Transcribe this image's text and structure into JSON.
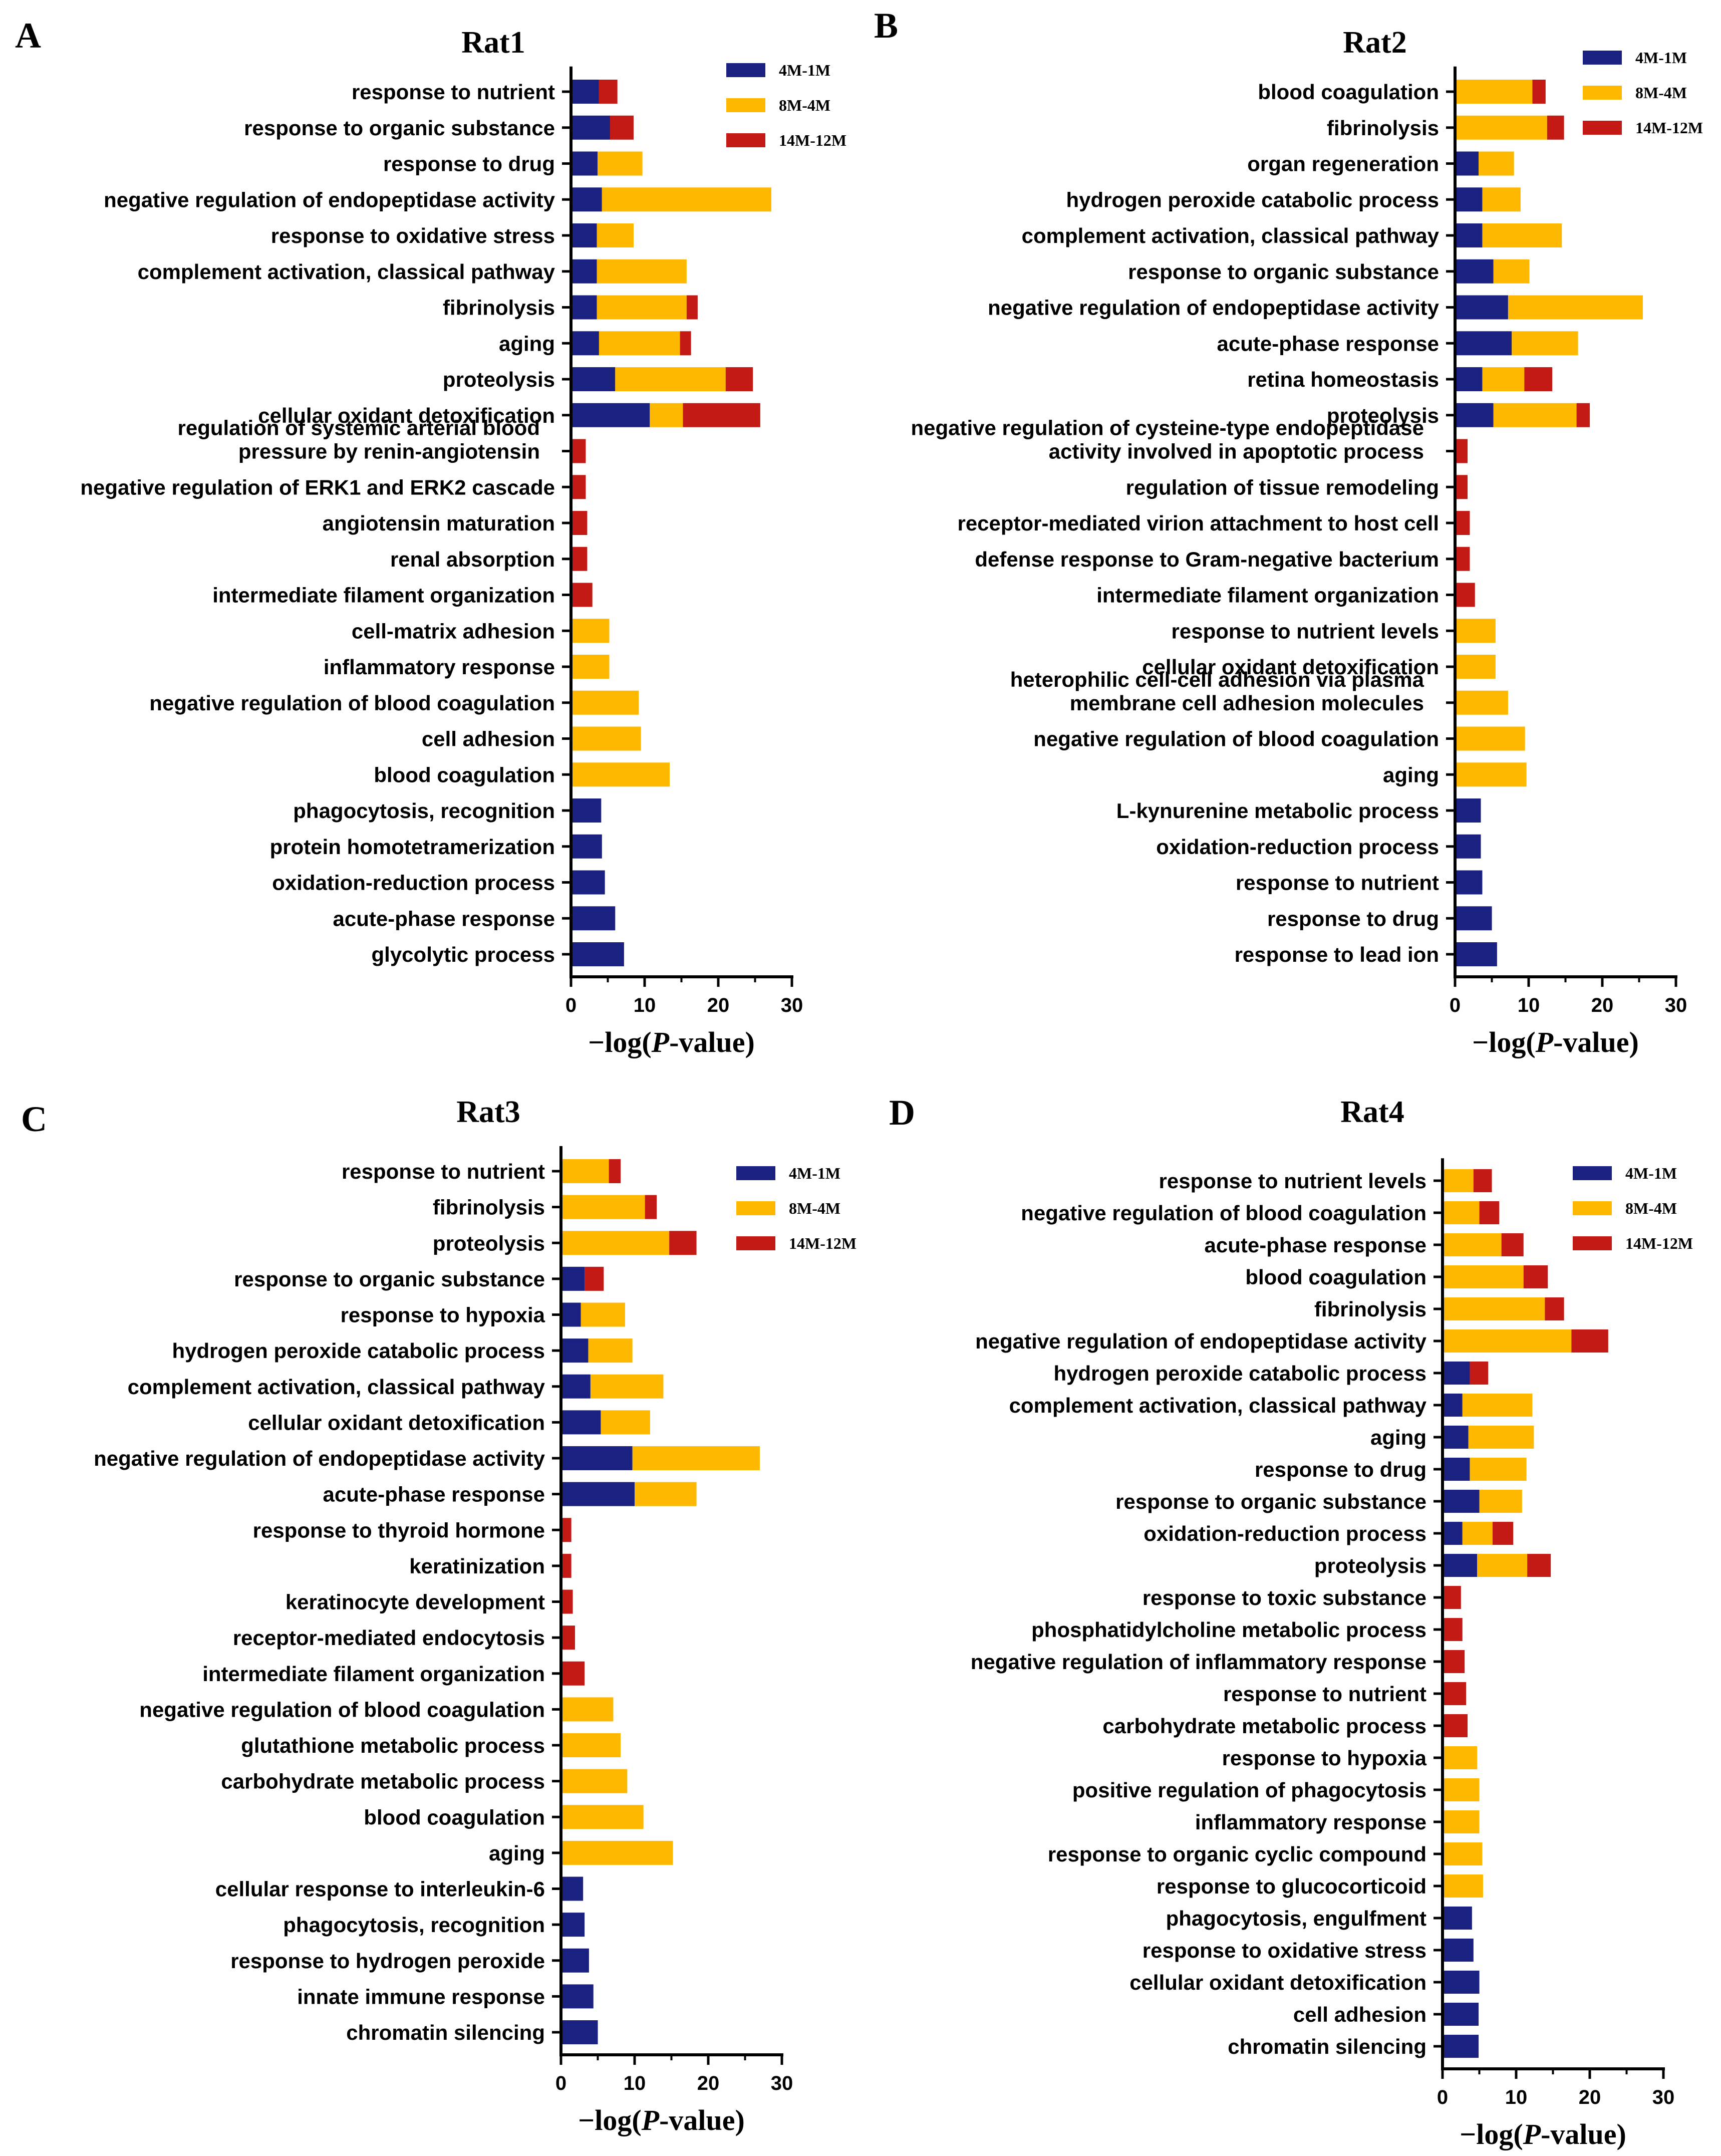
{
  "legend_labels": [
    "4M-1M",
    "8M-4M",
    "14M-12M"
  ],
  "colors": {
    "4M-1M": "#1a2180",
    "8M-4M": "#ffb800",
    "14M-12M": "#c41a16"
  },
  "xlabel_prefix": "−log(",
  "xlabel_italic": "P",
  "xlabel_suffix": "-value)",
  "chart_data": [
    {
      "type": "bar",
      "orientation": "horizontal",
      "stacked": true,
      "panel": "A",
      "title": "Rat1",
      "xlabel": "−log(P-value)",
      "xlim": [
        0,
        30
      ],
      "xticks": [
        0,
        10,
        20,
        30
      ],
      "legend_position": "top-right",
      "categories": [
        "response to nutrient",
        "response to organic substance",
        "response to drug",
        "negative regulation of endopeptidase activity",
        "response to oxidative stress",
        "complement activation, classical pathway",
        "fibrinolysis",
        "aging",
        "proteolysis",
        "cellular oxidant detoxification",
        "regulation of systemic arterial blood|pressure by renin-angiotensin",
        "negative regulation of ERK1 and ERK2 cascade",
        "angiotensin maturation",
        "renal absorption",
        "intermediate filament organization",
        "cell-matrix adhesion",
        "inflammatory response",
        "negative regulation of blood coagulation",
        "cell adhesion",
        "blood coagulation",
        "phagocytosis, recognition",
        "protein homotetramerization",
        "oxidation-reduction process",
        "acute-phase response",
        "glycolytic process"
      ],
      "series": [
        {
          "name": "4M-1M",
          "values": [
            3.6,
            5.1,
            3.4,
            4.0,
            3.3,
            3.3,
            3.3,
            3.6,
            5.8,
            10.5,
            0,
            0,
            0,
            0,
            0,
            0,
            0,
            0,
            0,
            0,
            3.9,
            4.0,
            4.4,
            5.8,
            7.0
          ]
        },
        {
          "name": "8M-4M",
          "values": [
            0,
            0,
            6.1,
            23.0,
            5.0,
            12.2,
            12.2,
            11.0,
            15.0,
            4.5,
            0,
            0,
            0,
            0,
            0,
            5.0,
            5.0,
            9.0,
            9.3,
            13.2,
            0,
            0,
            0,
            0,
            0
          ]
        },
        {
          "name": "14M-12M",
          "values": [
            2.5,
            3.2,
            0,
            0,
            0,
            0,
            1.5,
            1.5,
            3.7,
            10.5,
            1.8,
            1.8,
            2.0,
            2.0,
            2.7,
            0,
            0,
            0,
            0,
            0,
            0,
            0,
            0,
            0,
            0
          ]
        }
      ]
    },
    {
      "type": "bar",
      "orientation": "horizontal",
      "stacked": true,
      "panel": "B",
      "title": "Rat2",
      "xlabel": "−log(P-value)",
      "xlim": [
        0,
        30
      ],
      "xticks": [
        0,
        10,
        20,
        30
      ],
      "legend_position": "top-right",
      "categories": [
        "blood coagulation",
        "fibrinolysis",
        "organ regeneration",
        "hydrogen peroxide catabolic process",
        "complement activation, classical pathway",
        "response to organic substance",
        "negative regulation of endopeptidase activity",
        "acute-phase response",
        "retina homeostasis",
        "proteolysis",
        "negative regulation of cysteine-type endopeptidase|activity involved in apoptotic process",
        "regulation of tissue remodeling",
        "receptor-mediated virion attachment to host cell",
        "defense response to Gram-negative bacterium",
        "intermediate filament organization",
        "response to nutrient levels",
        "cellular oxidant detoxification",
        "heterophilic cell-cell adhesion via plasma|membrane cell adhesion molecules",
        "negative regulation of blood coagulation",
        "aging",
        "L-kynurenine metabolic process",
        "oxidation-reduction process",
        "response to nutrient",
        "response to drug",
        "response to lead ion"
      ],
      "series": [
        {
          "name": "4M-1M",
          "values": [
            0,
            0,
            3.0,
            3.5,
            3.5,
            5.0,
            7.0,
            7.5,
            3.5,
            5.0,
            0,
            0,
            0,
            0,
            0,
            0,
            0,
            0,
            0,
            0,
            3.3,
            3.3,
            3.5,
            4.8,
            5.5
          ]
        },
        {
          "name": "8M-4M",
          "values": [
            10.3,
            12.3,
            4.8,
            5.2,
            10.8,
            4.9,
            18.3,
            9.0,
            5.7,
            11.3,
            0,
            0,
            0,
            0,
            0,
            5.3,
            5.3,
            7.0,
            9.3,
            9.5,
            0,
            0,
            0,
            0,
            0
          ]
        },
        {
          "name": "14M-12M",
          "values": [
            1.8,
            2.3,
            0,
            0,
            0,
            0,
            0,
            0,
            3.8,
            1.8,
            1.5,
            1.5,
            1.8,
            1.8,
            2.5,
            0,
            0,
            0,
            0,
            0,
            0,
            0,
            0,
            0,
            0
          ]
        }
      ]
    },
    {
      "type": "bar",
      "orientation": "horizontal",
      "stacked": true,
      "panel": "C",
      "title": "Rat3",
      "xlabel": "−log(P-value)",
      "xlim": [
        0,
        30
      ],
      "xticks": [
        0,
        10,
        20,
        30
      ],
      "legend_position": "top-right",
      "categories": [
        "response to nutrient",
        "fibrinolysis",
        "proteolysis",
        "response to organic substance",
        "response to hypoxia",
        "hydrogen peroxide catabolic process",
        "complement activation, classical pathway",
        "cellular oxidant detoxification",
        "negative regulation of endopeptidase activity",
        "acute-phase response",
        "response to thyroid hormone",
        "keratinization",
        "keratinocyte development",
        "receptor-mediated endocytosis",
        "intermediate filament organization",
        "negative regulation of blood coagulation",
        "glutathione metabolic process",
        "carbohydrate metabolic process",
        "blood coagulation",
        "aging",
        "cellular response to interleukin-6",
        "phagocytosis, recognition",
        "response to hydrogen peroxide",
        "innate immune response",
        "chromatin silencing"
      ],
      "series": [
        {
          "name": "4M-1M",
          "values": [
            0,
            0,
            0,
            3.0,
            2.5,
            3.5,
            3.8,
            5.2,
            9.5,
            9.8,
            0,
            0,
            0,
            0,
            0,
            0,
            0,
            0,
            0,
            0,
            2.8,
            3.0,
            3.6,
            4.2,
            4.8
          ]
        },
        {
          "name": "8M-4M",
          "values": [
            6.3,
            11.2,
            14.5,
            0,
            6.0,
            6.0,
            9.9,
            6.7,
            17.3,
            8.4,
            0,
            0,
            0,
            0,
            0,
            6.9,
            7.9,
            8.8,
            11.0,
            15.0,
            0,
            0,
            0,
            0,
            0
          ]
        },
        {
          "name": "14M-12M",
          "values": [
            1.6,
            1.6,
            3.7,
            2.6,
            0,
            0,
            0,
            0,
            0,
            0,
            1.2,
            1.2,
            1.4,
            1.7,
            3.0,
            0,
            0,
            0,
            0,
            0,
            0,
            0,
            0,
            0,
            0
          ]
        }
      ]
    },
    {
      "type": "bar",
      "orientation": "horizontal",
      "stacked": true,
      "panel": "D",
      "title": "Rat4",
      "xlabel": "−log(P-value)",
      "xlim": [
        0,
        30
      ],
      "xticks": [
        0,
        10,
        20,
        30
      ],
      "legend_position": "top-right",
      "categories": [
        "response to nutrient levels",
        "negative regulation of blood coagulation",
        "acute-phase response",
        "blood coagulation",
        "fibrinolysis",
        "negative regulation of endopeptidase activity",
        "hydrogen peroxide catabolic process",
        "complement activation, classical pathway",
        "aging",
        "response to drug",
        "response to organic substance",
        "oxidation-reduction process",
        "proteolysis",
        "response to toxic substance",
        "phosphatidylcholine metabolic process",
        "negative regulation of inflammatory response",
        "response to nutrient",
        "carbohydrate metabolic process",
        "response to hypoxia",
        "positive regulation of phagocytosis",
        "inflammatory response",
        "response to organic cyclic compound",
        "response to glucocorticoid",
        "phagocytosis, engulfment",
        "response to oxidative stress",
        "cellular oxidant detoxification",
        "cell adhesion",
        "chromatin silencing"
      ],
      "series": [
        {
          "name": "4M-1M",
          "values": [
            0,
            0,
            0,
            0,
            0,
            0,
            3.5,
            2.5,
            3.3,
            3.5,
            4.8,
            2.5,
            4.5,
            0,
            0,
            0,
            0,
            0,
            0,
            0,
            0,
            0,
            0,
            3.8,
            4.0,
            4.8,
            4.7,
            4.7
          ]
        },
        {
          "name": "8M-4M",
          "values": [
            4.0,
            4.8,
            7.8,
            10.8,
            13.7,
            17.3,
            0,
            9.5,
            8.9,
            7.7,
            5.8,
            4.1,
            6.8,
            0,
            0,
            0,
            0,
            0,
            4.5,
            4.8,
            4.8,
            5.2,
            5.3,
            0,
            0,
            0,
            0,
            0
          ]
        },
        {
          "name": "14M-12M",
          "values": [
            2.5,
            2.7,
            3.0,
            3.3,
            2.6,
            5.0,
            2.5,
            0,
            0,
            0,
            0,
            2.8,
            3.2,
            2.3,
            2.5,
            2.8,
            3.0,
            3.2,
            0,
            0,
            0,
            0,
            0,
            0,
            0,
            0,
            0,
            0
          ]
        }
      ]
    }
  ]
}
